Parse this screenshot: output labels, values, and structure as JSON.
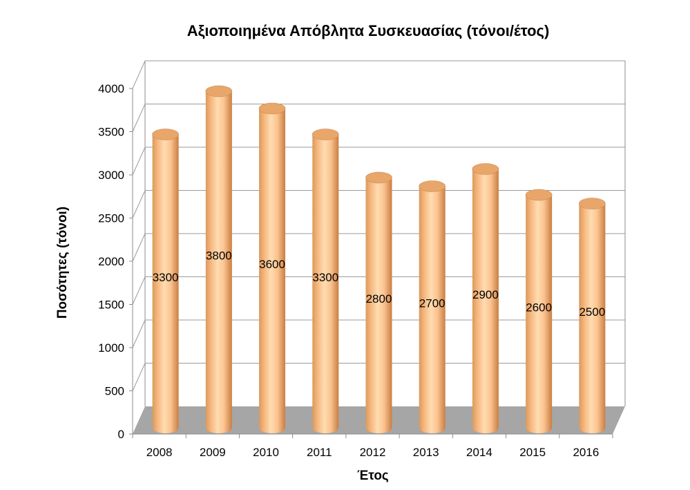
{
  "chart_data": {
    "type": "bar",
    "title": "Αξιοποιημένα Απόβλητα Συσκευασίας (τόνοι/έτος)",
    "xlabel": "Έτος",
    "ylabel": "Ποσότητες (τόνοι)",
    "categories": [
      "2008",
      "2009",
      "2010",
      "2011",
      "2012",
      "2013",
      "2014",
      "2015",
      "2016"
    ],
    "values": [
      3300,
      3800,
      3600,
      3300,
      2800,
      2700,
      2900,
      2600,
      2500
    ],
    "data_labels": [
      "3300",
      "3800",
      "3600",
      "3300",
      "2800",
      "2700",
      "2900",
      "2600",
      "2500"
    ],
    "yticks": [
      "0",
      "500",
      "1000",
      "1500",
      "2000",
      "2500",
      "3000",
      "3500",
      "4000"
    ],
    "ylim": [
      0,
      4000
    ],
    "grid": true,
    "legend": "none",
    "bar_shape": "cylinder",
    "colors": {
      "bar_light": "#ffe0b8",
      "bar_mid": "#fcc28e",
      "bar_dark": "#d4894a",
      "bar_top": "#e8a66a",
      "floor": "#a6a6a6",
      "grid": "#9a9a9a"
    }
  }
}
